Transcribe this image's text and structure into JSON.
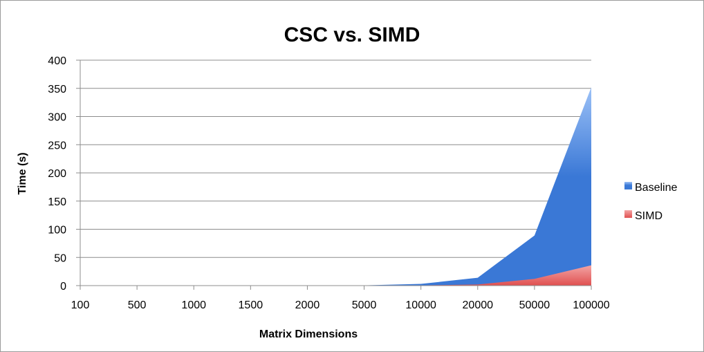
{
  "chart_data": {
    "type": "area",
    "title": "CSC vs. SIMD",
    "xlabel": "Matrix Dimensions",
    "ylabel": "Time (s)",
    "categories": [
      "100",
      "500",
      "1000",
      "1500",
      "2000",
      "5000",
      "10000",
      "20000",
      "50000",
      "100000"
    ],
    "yticks": [
      "0",
      "50",
      "100",
      "150",
      "200",
      "250",
      "300",
      "350",
      "400"
    ],
    "ylim": [
      0,
      400
    ],
    "grid": true,
    "legend_position": "right",
    "series": [
      {
        "name": "Baseline",
        "values": [
          0,
          0,
          0,
          0,
          0,
          0.5,
          3,
          14,
          89,
          352
        ],
        "color": "#3a78d6",
        "color_light": "#9cc1f7"
      },
      {
        "name": "SIMD",
        "values": [
          0,
          0,
          0,
          0,
          0,
          0,
          0.5,
          2,
          12,
          36
        ],
        "color": "#e05050",
        "color_light": "#f3a4a4"
      }
    ]
  }
}
